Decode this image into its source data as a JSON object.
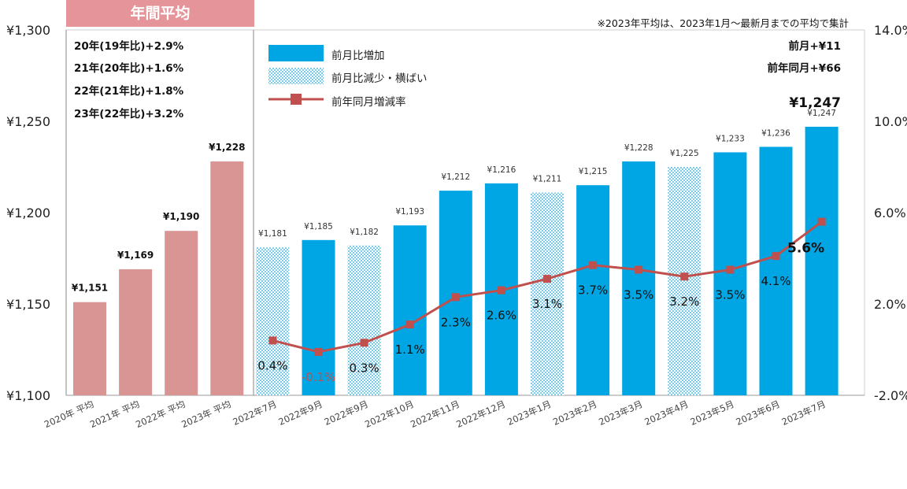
{
  "header": {
    "badge": "年間平均",
    "note": "※2023年平均は、2023年1月～最新月までの平均で集計"
  },
  "annual_comparison": [
    "20年(19年比)+2.9%",
    "21年(20年比)+1.6%",
    "22年(21年比)+1.8%",
    "23年(22年比)+3.2%"
  ],
  "summary": {
    "mom": "前月+¥11",
    "yoy": "前年同月+¥66",
    "latest": "¥1,247"
  },
  "legend": {
    "increase": "前月比増加",
    "decrease_flat": "前月比減少・横ばい",
    "yoy_rate": "前年同月増減率"
  },
  "colors": {
    "annual": "#d99494",
    "increase": "#00a5e3",
    "hatch": "#7ccce8",
    "line": "#c0504d",
    "header": "#e5959a"
  },
  "chart_data": {
    "type": "bar",
    "categories": [
      "2020年 平均",
      "2021年 平均",
      "2022年 平均",
      "2023年 平均",
      "2022年7月",
      "2022年9月",
      "2022年9月",
      "2022年10月",
      "2022年11月",
      "2022年12月",
      "2023年1月",
      "2023年2月",
      "2023年3月",
      "2023年4月",
      "2023年5月",
      "2023年6月",
      "2023年7月"
    ],
    "values": [
      1151,
      1169,
      1190,
      1228,
      1181,
      1185,
      1182,
      1193,
      1212,
      1216,
      1211,
      1215,
      1228,
      1225,
      1233,
      1236,
      1247
    ],
    "value_labels": [
      "¥1,151",
      "¥1,169",
      "¥1,190",
      "¥1,228",
      "¥1,181",
      "¥1,185",
      "¥1,182",
      "¥1,193",
      "¥1,212",
      "¥1,216",
      "¥1,211",
      "¥1,215",
      "¥1,228",
      "¥1,225",
      "¥1,233",
      "¥1,236",
      "¥1,247"
    ],
    "bar_kind": [
      "annual",
      "annual",
      "annual",
      "annual",
      "hatch",
      "increase",
      "hatch",
      "increase",
      "increase",
      "increase",
      "hatch",
      "increase",
      "increase",
      "hatch",
      "increase",
      "increase",
      "increase"
    ],
    "yoy_rate": [
      0.4,
      -0.1,
      0.3,
      1.1,
      2.3,
      2.6,
      3.1,
      3.7,
      3.5,
      3.2,
      3.5,
      4.1,
      5.6
    ],
    "yoy_labels": [
      "0.4%",
      "-0.1%",
      "0.3%",
      "1.1%",
      "2.3%",
      "2.6%",
      "3.1%",
      "3.7%",
      "3.5%",
      "3.2%",
      "3.5%",
      "4.1%",
      "5.6%"
    ],
    "ylim": [
      1100,
      1300
    ],
    "yticks": [
      1100,
      1150,
      1200,
      1250,
      1300
    ],
    "ytick_labels": [
      "¥1,100",
      "¥1,150",
      "¥1,200",
      "¥1,250",
      "¥1,300"
    ],
    "y2lim": [
      -2.0,
      14.0
    ],
    "y2ticks": [
      -2,
      2,
      6,
      10,
      14
    ],
    "y2tick_labels": [
      "-2.0%",
      "2.0%",
      "6.0%",
      "10.0%",
      "14.0%"
    ]
  }
}
